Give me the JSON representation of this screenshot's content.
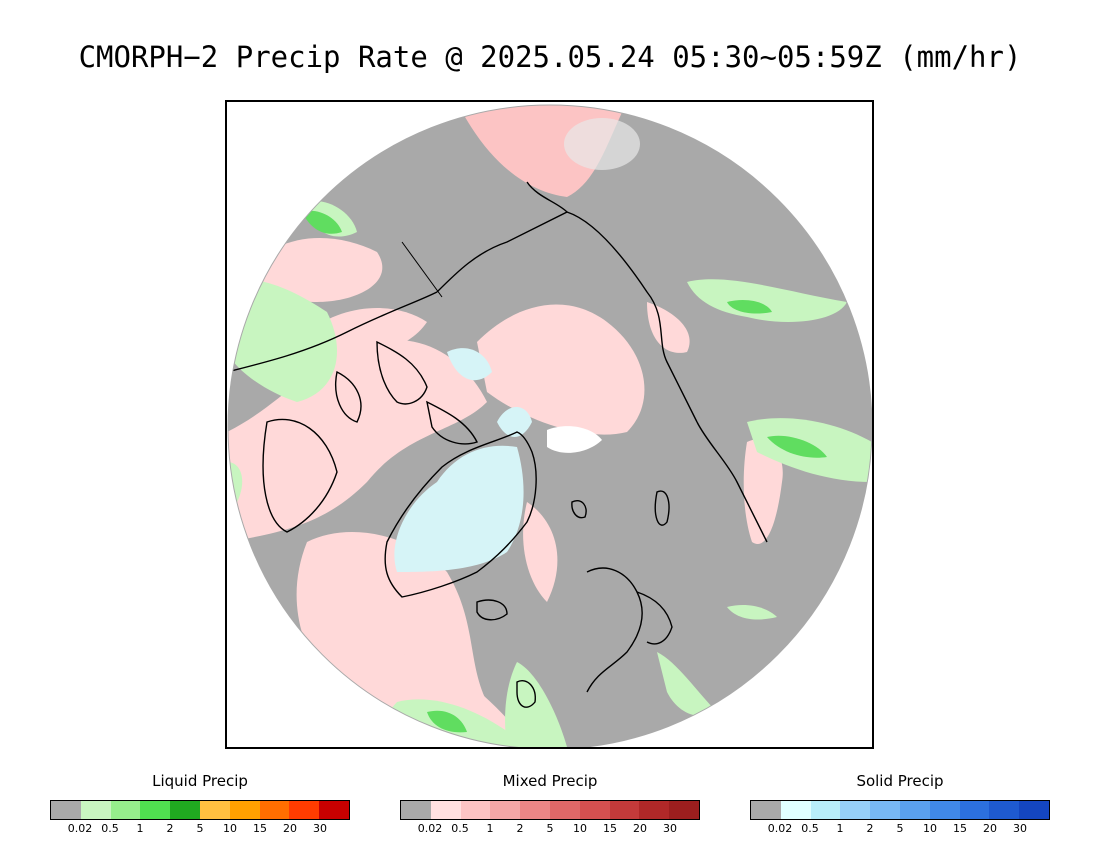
{
  "title": "CMORPH−2 Precip Rate @ 2025.05.24 05:30~05:59Z (mm/hr)",
  "map": {
    "projection": "north-polar-stereographic",
    "background_color": "#a9a9a9"
  },
  "legends": [
    {
      "title": "Liquid Precip",
      "colors": [
        "#a9a9a9",
        "#c8f5c0",
        "#96ee8c",
        "#50e050",
        "#20aa20",
        "#ffc040",
        "#ffa000",
        "#ff6e00",
        "#ff3c00",
        "#c80000"
      ],
      "ticks": [
        "0.02",
        "0.5",
        "1",
        "2",
        "5",
        "10",
        "15",
        "20",
        "30"
      ]
    },
    {
      "title": "Mixed Precip",
      "colors": [
        "#a9a9a9",
        "#ffe0e0",
        "#fcc4c4",
        "#f4a6a6",
        "#ec8686",
        "#e06868",
        "#d45050",
        "#c43a3a",
        "#b02828",
        "#9c1e1e"
      ],
      "ticks": [
        "0.02",
        "0.5",
        "1",
        "2",
        "5",
        "10",
        "15",
        "20",
        "30"
      ]
    },
    {
      "title": "Solid Precip",
      "colors": [
        "#a9a9a9",
        "#e0ffff",
        "#b8eefa",
        "#96d0f8",
        "#78b8f4",
        "#5aa0ee",
        "#4088e8",
        "#2c70de",
        "#1e5ad0",
        "#1446c0"
      ],
      "ticks": [
        "0.02",
        "0.5",
        "1",
        "2",
        "5",
        "10",
        "15",
        "20",
        "30"
      ]
    }
  ]
}
